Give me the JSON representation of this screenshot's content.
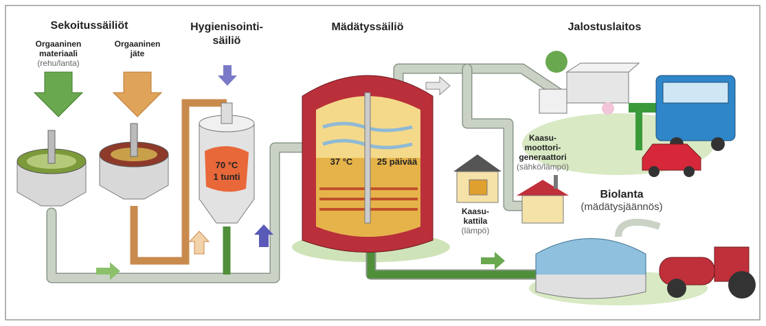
{
  "mixing_tanks": {
    "title": "Sekoitussäiliöt",
    "inputs": [
      {
        "lines": [
          "Orgaaninen",
          "materiaali"
        ],
        "note": "(rehu/lanta)"
      },
      {
        "lines": [
          "Orgaaninen",
          "jäte"
        ]
      }
    ]
  },
  "hygienization_tank": {
    "title": [
      "Hygienisointi-",
      "säiliö"
    ],
    "temperature": "70 °C",
    "duration": "1 tunti"
  },
  "digester": {
    "title": "Mädätyssäiliö",
    "temperature": "37 °C",
    "duration": "25 päivää"
  },
  "upgrading_plant": {
    "title": "Jalostuslaitos"
  },
  "gas_engine_generator": {
    "lines": [
      "Kaasu-",
      "moottori-",
      "generaattori"
    ],
    "note": "(sähkö/lämpö)"
  },
  "gas_boiler": {
    "lines": [
      "Kaasu-",
      "kattila"
    ],
    "note": "(lämpö)"
  },
  "digestate": {
    "title": "Biolanta",
    "note": "(mädätysjäännös)"
  }
}
